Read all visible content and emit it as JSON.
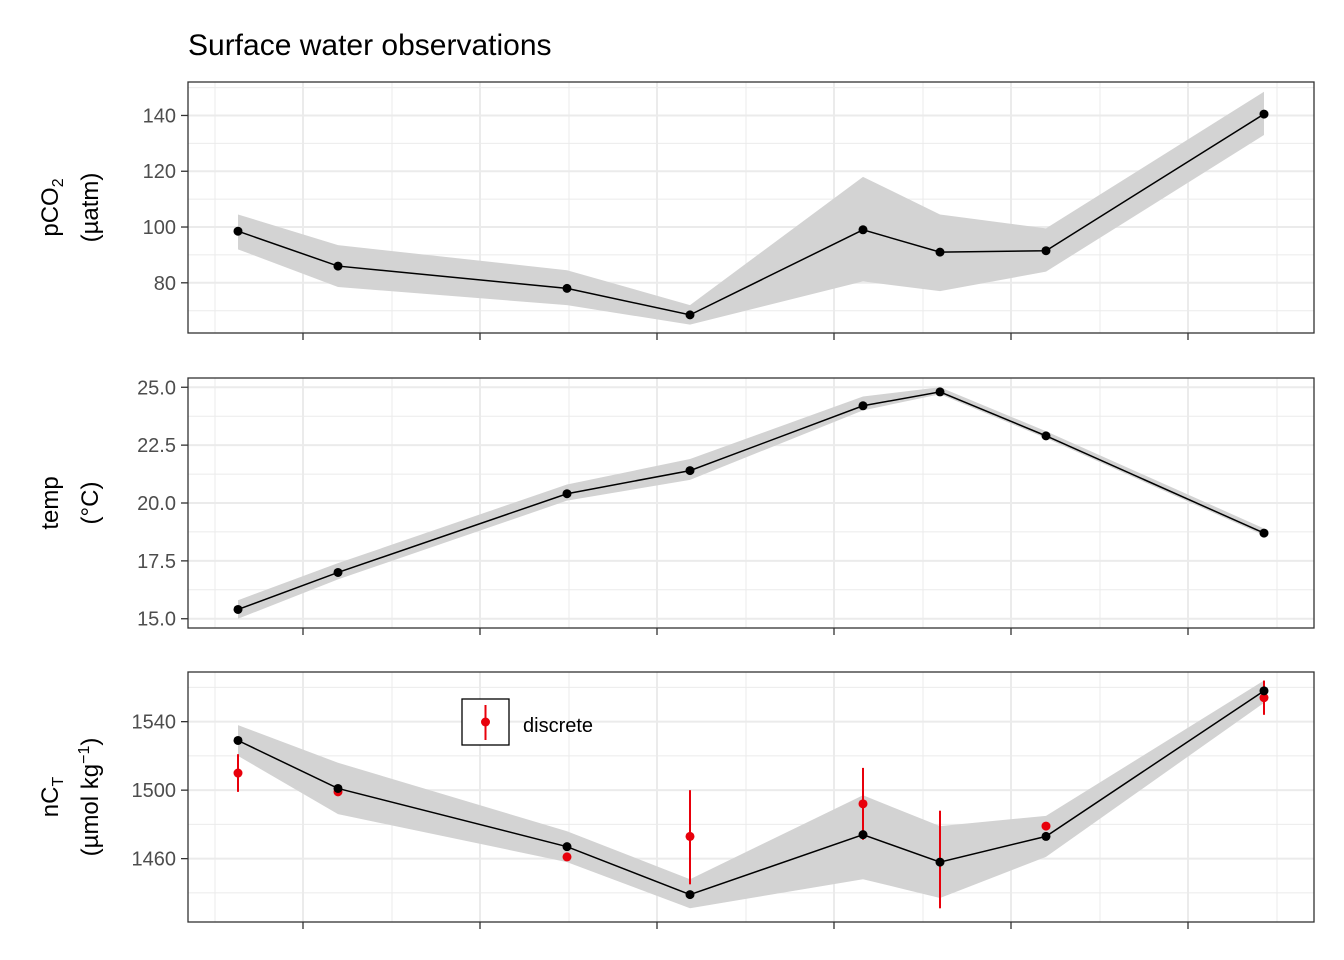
{
  "chart_data": {
    "type": "line",
    "title": "Surface water observations",
    "colors": {
      "model_line": "#000000",
      "ribbon": "#d3d3d3",
      "discrete": "#e8000b",
      "grid": "#ebebeb",
      "panel_border": "#333333"
    },
    "x": [
      1,
      2,
      3,
      4,
      5,
      6,
      7,
      8
    ],
    "panels": [
      {
        "id": "pco2",
        "ylabel_main": "pCO",
        "ylabel_sub": "2",
        "ylabel_units": "(µatm)",
        "ylim": [
          62,
          152
        ],
        "yticks": [
          80,
          100,
          120,
          140
        ],
        "y_minor": [
          70,
          90,
          110,
          130,
          150
        ],
        "series": {
          "values": [
            98.5,
            86,
            78,
            68.5,
            99,
            91,
            91.5,
            140.5
          ],
          "lower": [
            92,
            78.5,
            72,
            65,
            80.5,
            77,
            84,
            133
          ],
          "upper": [
            104.5,
            93.5,
            84.5,
            72,
            118,
            104.5,
            99.5,
            148.5
          ]
        }
      },
      {
        "id": "temp",
        "ylabel_main": "temp",
        "ylabel_units": "(°C)",
        "ylim": [
          14.6,
          25.4
        ],
        "yticks": [
          15.0,
          17.5,
          20.0,
          22.5,
          25.0
        ],
        "ytick_labels": [
          "15.0",
          "17.5",
          "20.0",
          "22.5",
          "25.0"
        ],
        "y_minor": [
          16.25,
          18.75,
          21.25,
          23.75
        ],
        "series": {
          "values": [
            15.4,
            17.0,
            20.4,
            21.4,
            24.2,
            24.8,
            22.9,
            18.7
          ],
          "lower": [
            15.0,
            16.7,
            20.1,
            21.0,
            24.0,
            24.7,
            22.8,
            18.6
          ],
          "upper": [
            15.8,
            17.4,
            20.8,
            21.9,
            24.6,
            25.0,
            23.1,
            18.9
          ]
        }
      },
      {
        "id": "nct",
        "ylabel_main": "nC",
        "ylabel_sub": "T",
        "ylabel_units_pre": "(µmol kg",
        "ylabel_units_sup": "−1",
        "ylabel_units_post": ")",
        "ylim": [
          1423,
          1569
        ],
        "yticks": [
          1460,
          1500,
          1540
        ],
        "y_minor": [
          1440,
          1480,
          1520,
          1560
        ],
        "series": {
          "values": [
            1529,
            1501,
            1467,
            1439,
            1474,
            1458,
            1473,
            1558
          ],
          "lower": [
            1520,
            1486,
            1458,
            1431,
            1448,
            1437,
            1461,
            1551
          ],
          "upper": [
            1538,
            1516,
            1476,
            1448,
            1497,
            1479,
            1485,
            1564
          ]
        },
        "discrete": {
          "name": "discrete",
          "values": [
            1510,
            1499,
            1461,
            1473,
            1492,
            null,
            1479,
            1554
          ],
          "err_low": [
            1499,
            1497,
            1459,
            1445,
            1471,
            1431,
            1477,
            1544
          ],
          "err_high": [
            1521,
            1501,
            1463,
            1500,
            1513,
            1488,
            1481,
            1564
          ]
        },
        "legend_position": "top-left"
      }
    ]
  }
}
